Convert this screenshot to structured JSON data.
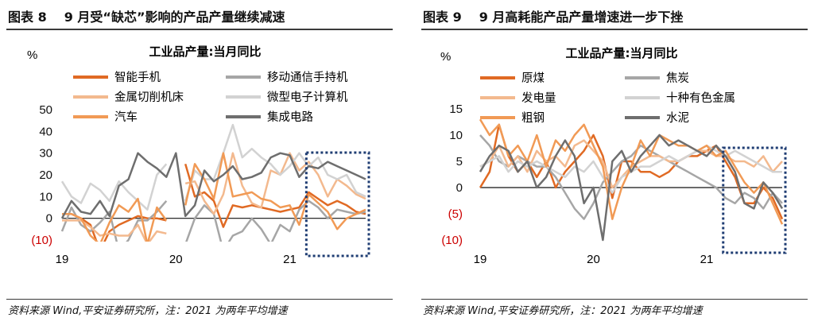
{
  "colors": {
    "neg_tick": "#cc0000",
    "highlight": "#1f3d73",
    "dark_orange": "#e06a24",
    "orange": "#f19a55",
    "peach": "#f3b98e",
    "gray": "#a6a6a6",
    "light_gray": "#d2d2d2",
    "dark_gray": "#6e6e6e"
  },
  "charts": [
    {
      "title_num": "图表 8",
      "title_text": "9 月受“缺芯”影响的产品产量继续减速",
      "source": "资料来源 Wind,平安证券研究所，注：2021 为两年平均增速",
      "unit": "%",
      "subtitle": "工业品产量:当月同比"
    },
    {
      "title_num": "图表 9",
      "title_text": "9 月高耗能产品产量增速进一步下挫",
      "source": "资料来源 Wind,平安证券研究所，注：2021 为两年平均增速",
      "unit": "%",
      "subtitle": "工业品产量:当月同比"
    }
  ],
  "chart_data": [
    {
      "type": "line",
      "ylim": [
        -10,
        50
      ],
      "yticks": [
        -10,
        0,
        10,
        20,
        30,
        40,
        50
      ],
      "ytick_labels": [
        "(10)",
        "0",
        "10",
        "20",
        "30",
        "40",
        "50"
      ],
      "x_tick_labels": [
        "19",
        "20",
        "21"
      ],
      "x_tick_index": [
        0,
        12,
        24
      ],
      "n_points": 33,
      "legend": "top",
      "highlight_box": {
        "from_index": 26,
        "to_index": 32
      },
      "series": [
        {
          "name": "智能手机",
          "color": "#e06a24",
          "width": 2.5,
          "values": [
            2,
            2,
            0,
            -3,
            -15,
            -6,
            -3,
            -1,
            1,
            0,
            0,
            -1,
            null,
            25,
            10,
            12,
            8,
            -4,
            6,
            5,
            6,
            5,
            4,
            3,
            4,
            5,
            12,
            9,
            6,
            8,
            6,
            3,
            2
          ]
        },
        {
          "name": "移动通信手持机",
          "color": "#a6a6a6",
          "width": 2.5,
          "values": [
            -6,
            5,
            -3,
            -6,
            -2,
            3,
            -15,
            -10,
            -1,
            -1,
            3,
            8,
            null,
            -12,
            0,
            6,
            2,
            -15,
            -8,
            -6,
            0,
            -5,
            -12,
            -3,
            -6,
            4,
            8,
            5,
            0,
            4,
            3,
            2,
            3
          ]
        },
        {
          "name": "金属切削机床",
          "color": "#f3b98e",
          "width": 2.5,
          "values": [
            -1,
            -1,
            -1,
            -4,
            -8,
            -7,
            -8,
            -8,
            -3,
            -12,
            -6,
            -7,
            null,
            16,
            17,
            8,
            2,
            11,
            30,
            15,
            7,
            5,
            22,
            20,
            30,
            22,
            26,
            20,
            10,
            18,
            15,
            11,
            9
          ]
        },
        {
          "name": "微型电子计算机",
          "color": "#d2d2d2",
          "width": 2.5,
          "values": [
            17,
            10,
            7,
            16,
            13,
            8,
            17,
            12,
            8,
            4,
            20,
            25,
            null,
            8,
            22,
            18,
            18,
            30,
            43,
            28,
            32,
            28,
            25,
            20,
            24,
            30,
            24,
            28,
            20,
            18,
            20,
            12,
            10
          ]
        },
        {
          "name": "汽车",
          "color": "#f19a55",
          "width": 2.5,
          "values": [
            2,
            2,
            0,
            -8,
            -12,
            -2,
            6,
            3,
            9,
            -12,
            5,
            -1,
            null,
            6,
            25,
            18,
            9,
            30,
            10,
            11,
            12,
            9,
            8,
            5,
            6,
            -3,
            11,
            7,
            3,
            -5,
            0,
            2,
            4
          ]
        },
        {
          "name": "集成电路",
          "color": "#6e6e6e",
          "width": 2.5,
          "values": [
            0,
            8,
            3,
            2,
            8,
            1,
            15,
            18,
            30,
            26,
            23,
            19,
            30,
            1,
            6,
            22,
            17,
            20,
            24,
            18,
            19,
            21,
            28,
            30,
            29,
            19,
            24,
            23,
            26,
            24,
            22,
            20,
            18
          ]
        }
      ]
    },
    {
      "type": "line",
      "ylim": [
        -10,
        15
      ],
      "yticks": [
        -10,
        -5,
        0,
        5,
        10,
        15
      ],
      "ytick_labels": [
        "(10)",
        "(5)",
        "0",
        "5",
        "10",
        "15"
      ],
      "x_tick_labels": [
        "19",
        "20",
        "21"
      ],
      "x_tick_index": [
        0,
        12,
        24
      ],
      "n_points": 33,
      "legend": "top",
      "highlight_box": {
        "from_index": 26,
        "to_index": 32
      },
      "series": [
        {
          "name": "原煤",
          "color": "#e06a24",
          "width": 2.5,
          "values": [
            0,
            3,
            12,
            6,
            3,
            5,
            2,
            5,
            0,
            3,
            5,
            7,
            10,
            6,
            -2,
            5,
            5,
            3,
            3,
            2,
            3,
            5,
            6,
            6,
            7,
            8,
            5,
            2,
            -3,
            -3,
            0,
            -2,
            -6
          ]
        },
        {
          "name": "焦炭",
          "color": "#a6a6a6",
          "width": 2.5,
          "values": [
            10,
            8,
            5,
            4,
            6,
            5,
            4,
            4,
            2,
            -1,
            -4,
            -6,
            -3,
            1,
            3,
            5,
            6,
            8,
            7,
            6,
            5,
            4,
            3,
            2,
            1,
            0,
            -2,
            -3,
            -1,
            -2,
            -4,
            -1,
            -3
          ]
        },
        {
          "name": "发电量",
          "color": "#f3b98e",
          "width": 2.5,
          "values": [
            4,
            5,
            8,
            4,
            6,
            3,
            7,
            5,
            6,
            4,
            8,
            9,
            7,
            5,
            0,
            2,
            4,
            5,
            6,
            6,
            5,
            5,
            6,
            7,
            7,
            6,
            6,
            5,
            5,
            4,
            6,
            3,
            5
          ]
        },
        {
          "name": "十种有色金属",
          "color": "#d2d2d2",
          "width": 2.5,
          "values": [
            4,
            5,
            6,
            3,
            5,
            4,
            5,
            4,
            3,
            2,
            4,
            3,
            5,
            2,
            -1,
            2,
            3,
            4,
            4,
            5,
            6,
            5,
            6,
            7,
            8,
            7,
            6,
            7,
            6,
            5,
            4,
            3,
            3
          ]
        },
        {
          "name": "粗钢",
          "color": "#f19a55",
          "width": 2.5,
          "values": [
            13,
            10,
            12,
            6,
            8,
            5,
            10,
            4,
            9,
            7,
            10,
            12,
            8,
            4,
            -6,
            0,
            4,
            9,
            6,
            10,
            9,
            8,
            8,
            7,
            8,
            6,
            7,
            4,
            1,
            -1,
            1,
            -3,
            -7
          ]
        },
        {
          "name": "水泥",
          "color": "#6e6e6e",
          "width": 2.5,
          "values": [
            3,
            6,
            8,
            7,
            3,
            5,
            0,
            2,
            6,
            9,
            6,
            -3,
            0,
            -10,
            5,
            7,
            3,
            6,
            8,
            10,
            8,
            9,
            8,
            7,
            6,
            8,
            6,
            3,
            -3,
            -4,
            1,
            -1,
            -4
          ]
        }
      ]
    }
  ]
}
